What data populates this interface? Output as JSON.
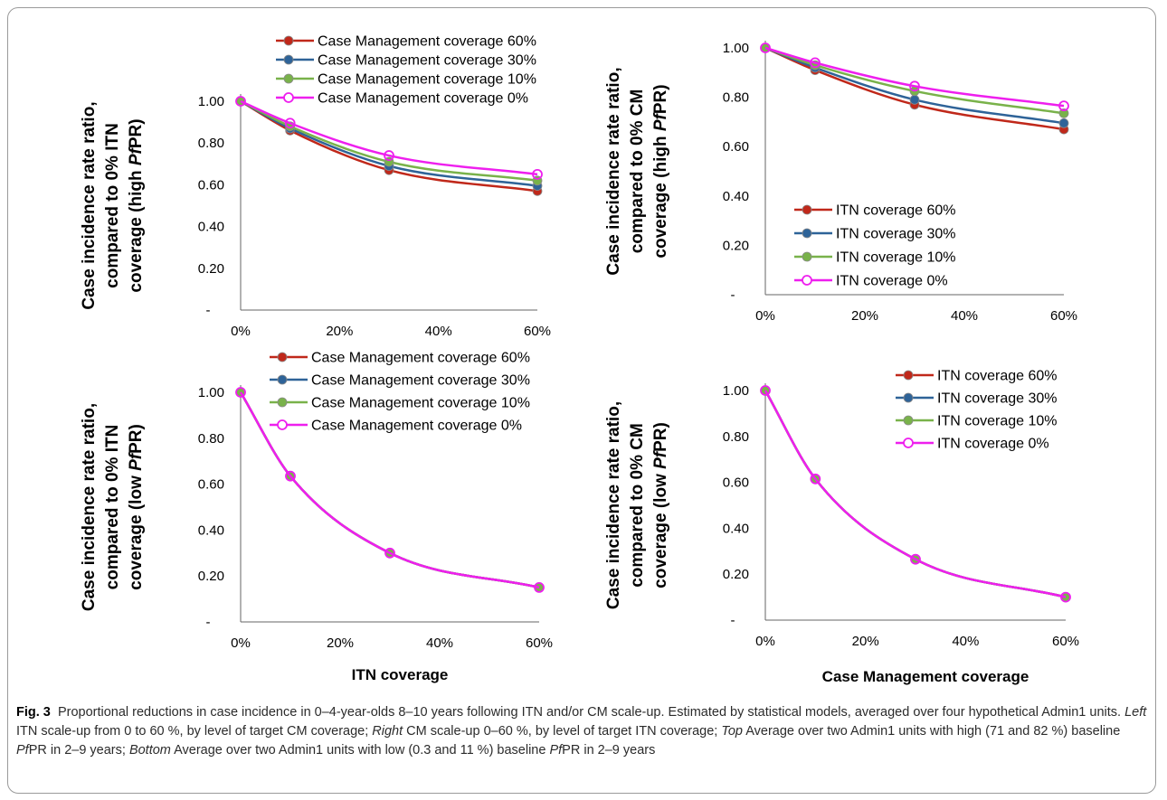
{
  "colors": {
    "s60": "#C0281A",
    "s30": "#2E6398",
    "s10": "#79B24A",
    "s0": "#EE1FEE",
    "axis": "#666666"
  },
  "chart_data": [
    {
      "type": "line",
      "panel": "top-left",
      "x": [
        "0%",
        "10%",
        "30%",
        "60%"
      ],
      "x_values": [
        0,
        10,
        30,
        60
      ],
      "xlim": [
        0,
        60
      ],
      "ylim": [
        0,
        1.0
      ],
      "yticks": [
        "-",
        "0.20",
        "0.40",
        "0.60",
        "0.80",
        "1.00"
      ],
      "xticks": [
        "0%",
        "20%",
        "40%",
        "60%"
      ],
      "xlabel": "",
      "ylabel_lines": [
        "Case incidence rate ratio,",
        "compared to 0% ITN",
        "coverage (high PfPR)"
      ],
      "legend_position": "top",
      "series": [
        {
          "name": "Case Management coverage 60%",
          "values": [
            1.0,
            0.86,
            0.67,
            0.57
          ],
          "marker": "filled",
          "color_key": "s60"
        },
        {
          "name": "Case Management coverage 30%",
          "values": [
            1.0,
            0.87,
            0.69,
            0.595
          ],
          "marker": "filled",
          "color_key": "s30"
        },
        {
          "name": "Case Management coverage 10%",
          "values": [
            1.0,
            0.88,
            0.71,
            0.62
          ],
          "marker": "filled",
          "color_key": "s10"
        },
        {
          "name": "Case Management coverage 0%",
          "values": [
            1.0,
            0.895,
            0.74,
            0.65
          ],
          "marker": "open",
          "color_key": "s0"
        }
      ]
    },
    {
      "type": "line",
      "panel": "top-right",
      "x": [
        "0%",
        "10%",
        "30%",
        "60%"
      ],
      "x_values": [
        0,
        10,
        30,
        60
      ],
      "xlim": [
        0,
        60
      ],
      "ylim": [
        0,
        1.0
      ],
      "yticks": [
        "-",
        "0.20",
        "0.40",
        "0.60",
        "0.80",
        "1.00"
      ],
      "xticks": [
        "0%",
        "20%",
        "40%",
        "60%"
      ],
      "xlabel": "",
      "ylabel_lines": [
        "Case incidence rate ratio,",
        "compared to 0% CM",
        "coverage (high PfPR)"
      ],
      "legend_position": "bottom-left",
      "series": [
        {
          "name": "ITN coverage 60%",
          "values": [
            1.0,
            0.91,
            0.77,
            0.67
          ],
          "marker": "filled",
          "color_key": "s60"
        },
        {
          "name": "ITN coverage 30%",
          "values": [
            1.0,
            0.92,
            0.79,
            0.695
          ],
          "marker": "filled",
          "color_key": "s30"
        },
        {
          "name": "ITN coverage 10%",
          "values": [
            1.0,
            0.93,
            0.825,
            0.735
          ],
          "marker": "filled",
          "color_key": "s10"
        },
        {
          "name": "ITN coverage 0%",
          "values": [
            1.0,
            0.94,
            0.845,
            0.765
          ],
          "marker": "open",
          "color_key": "s0"
        }
      ]
    },
    {
      "type": "line",
      "panel": "bottom-left",
      "x": [
        "0%",
        "10%",
        "30%",
        "60%"
      ],
      "x_values": [
        0,
        10,
        30,
        60
      ],
      "xlim": [
        0,
        60
      ],
      "ylim": [
        0,
        1.0
      ],
      "yticks": [
        "-",
        "0.20",
        "0.40",
        "0.60",
        "0.80",
        "1.00"
      ],
      "xticks": [
        "0%",
        "20%",
        "40%",
        "60%"
      ],
      "xlabel": "ITN coverage",
      "ylabel_lines": [
        "Case incidence rate ratio,",
        "compared to 0% ITN",
        "coverage (low PfPR)"
      ],
      "legend_position": "top",
      "series": [
        {
          "name": "Case Management coverage 60%",
          "values": [
            1.0,
            0.635,
            0.3,
            0.15
          ],
          "marker": "filled",
          "color_key": "s60"
        },
        {
          "name": "Case Management coverage 30%",
          "values": [
            1.0,
            0.635,
            0.3,
            0.15
          ],
          "marker": "filled",
          "color_key": "s30"
        },
        {
          "name": "Case Management coverage 10%",
          "values": [
            1.0,
            0.635,
            0.3,
            0.15
          ],
          "marker": "filled",
          "color_key": "s10"
        },
        {
          "name": "Case Management coverage 0%",
          "values": [
            1.0,
            0.635,
            0.3,
            0.15
          ],
          "marker": "open",
          "color_key": "s0"
        }
      ]
    },
    {
      "type": "line",
      "panel": "bottom-right",
      "x": [
        "0%",
        "10%",
        "30%",
        "60%"
      ],
      "x_values": [
        0,
        10,
        30,
        60
      ],
      "xlim": [
        0,
        60
      ],
      "ylim": [
        0,
        1.0
      ],
      "yticks": [
        "-",
        "0.20",
        "0.40",
        "0.60",
        "0.80",
        "1.00"
      ],
      "xticks": [
        "0%",
        "20%",
        "40%",
        "60%"
      ],
      "xlabel": "Case Management coverage",
      "ylabel_lines": [
        "Case incidence rate ratio,",
        "compared to 0% CM",
        "coverage (low PfPR)"
      ],
      "legend_position": "top-right",
      "series": [
        {
          "name": "ITN coverage 60%",
          "values": [
            1.0,
            0.615,
            0.265,
            0.1
          ],
          "marker": "filled",
          "color_key": "s60"
        },
        {
          "name": "ITN coverage 30%",
          "values": [
            1.0,
            0.615,
            0.265,
            0.1
          ],
          "marker": "filled",
          "color_key": "s30"
        },
        {
          "name": "ITN coverage 10%",
          "values": [
            1.0,
            0.615,
            0.265,
            0.1
          ],
          "marker": "filled",
          "color_key": "s10"
        },
        {
          "name": "ITN coverage 0%",
          "values": [
            1.0,
            0.615,
            0.265,
            0.1
          ],
          "marker": "open",
          "color_key": "s0"
        }
      ]
    }
  ],
  "caption": {
    "label": "Fig. 3",
    "text_1": "Proportional reductions in case incidence in 0–4-year-olds 8–10 years following ITN and/or CM scale-up. Estimated by statistical models, averaged over four hypothetical Admin1 units. ",
    "left_label": "Left",
    "text_2": " ITN scale-up from 0 to 60 %, by level of target CM coverage; ",
    "right_label": "Right",
    "text_3": " CM scale-up 0–60 %, by level of target ITN coverage; ",
    "top_label": "Top",
    "text_4": " Average over two Admin1 units with high (71 and 82 %) baseline ",
    "pf_1": "Pf",
    "text_5": "PR in 2–9 years; ",
    "bottom_label": "Bottom",
    "text_6": " Average over two Admin1 units with low (0.3 and 11 %) baseline ",
    "pf_2": "Pf",
    "text_7": "PR in 2–9 years"
  }
}
